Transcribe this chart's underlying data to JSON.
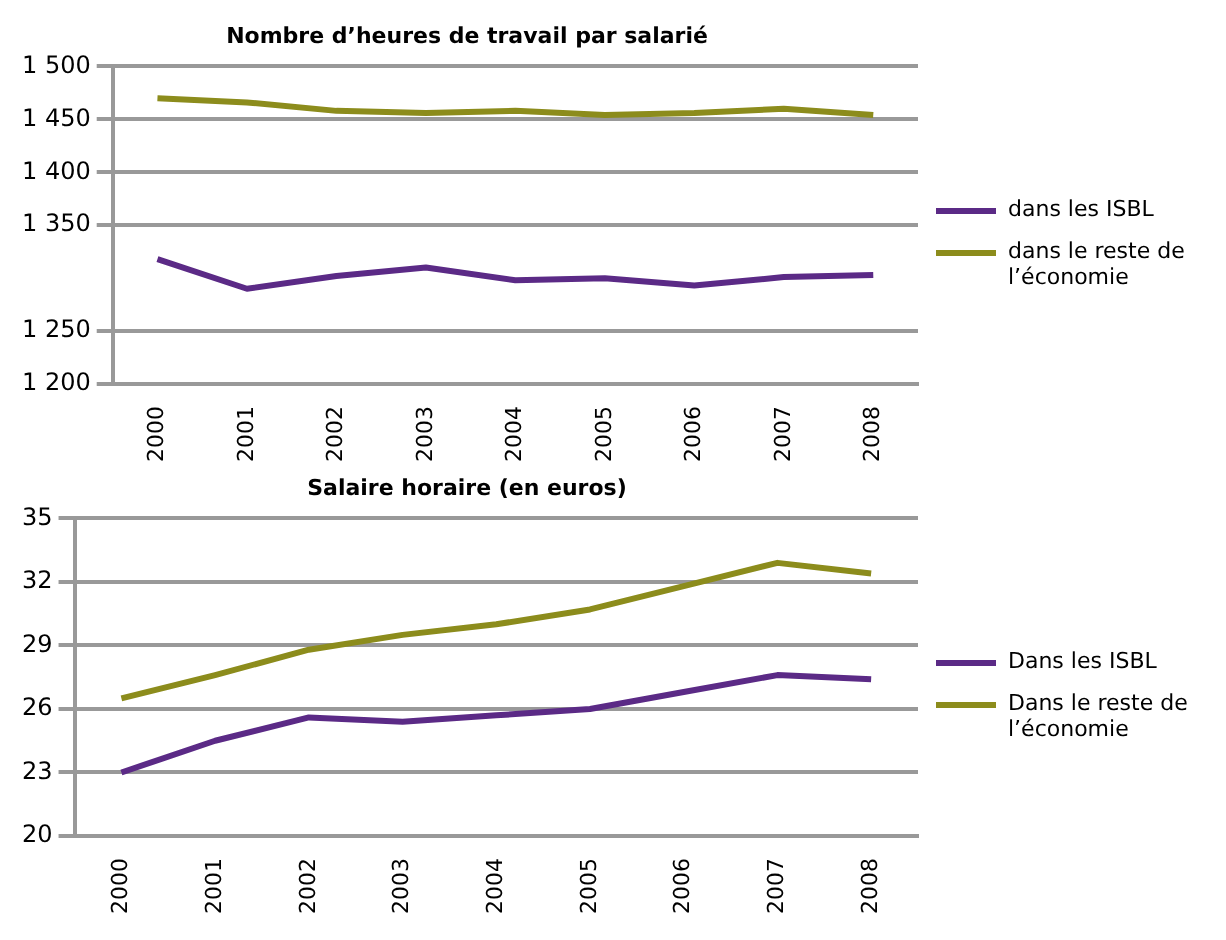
{
  "chart_data": [
    {
      "type": "line",
      "title": "Nombre d’heures de travail par salarié",
      "categories": [
        "2000",
        "2001",
        "2002",
        "2003",
        "2004",
        "2005",
        "2006",
        "2007",
        "2008"
      ],
      "series": [
        {
          "name": "dans les ISBL",
          "color": "#5b2a86",
          "values": [
            1318,
            1290,
            1302,
            1310,
            1298,
            1300,
            1293,
            1301,
            1303
          ]
        },
        {
          "name": "dans le reste de l’économie",
          "color": "#8c8c1c",
          "values": [
            1470,
            1466,
            1458,
            1456,
            1458,
            1454,
            1456,
            1460,
            1454
          ]
        }
      ],
      "ylim": [
        1200,
        1500
      ],
      "yticks": [
        {
          "value": 1200,
          "label": "1 200"
        },
        {
          "value": 1250,
          "label": "1 250"
        },
        {
          "value": 1350,
          "label": "1 350"
        },
        {
          "value": 1400,
          "label": "1 400"
        },
        {
          "value": 1450,
          "label": "1 450"
        },
        {
          "value": 1500,
          "label": "1 500"
        }
      ],
      "grid": "y",
      "legend": "right",
      "marker": "none"
    },
    {
      "type": "line",
      "title": "Salaire horaire (en euros)",
      "categories": [
        "2000",
        "2001",
        "2002",
        "2003",
        "2004",
        "2005",
        "2006",
        "2007",
        "2008"
      ],
      "series": [
        {
          "name": "Dans les ISBL",
          "color": "#5b2a86",
          "values": [
            23.0,
            24.5,
            25.6,
            25.4,
            25.7,
            26.0,
            26.8,
            27.6,
            27.4
          ]
        },
        {
          "name": "Dans le reste de l’économie",
          "color": "#8c8c1c",
          "values": [
            26.5,
            27.6,
            28.8,
            29.5,
            30.0,
            30.7,
            31.8,
            32.9,
            32.4
          ]
        }
      ],
      "ylim": [
        20,
        35
      ],
      "yticks": [
        20,
        23,
        26,
        29,
        32,
        35
      ],
      "grid": "y",
      "legend": "right",
      "marker": "none"
    }
  ]
}
